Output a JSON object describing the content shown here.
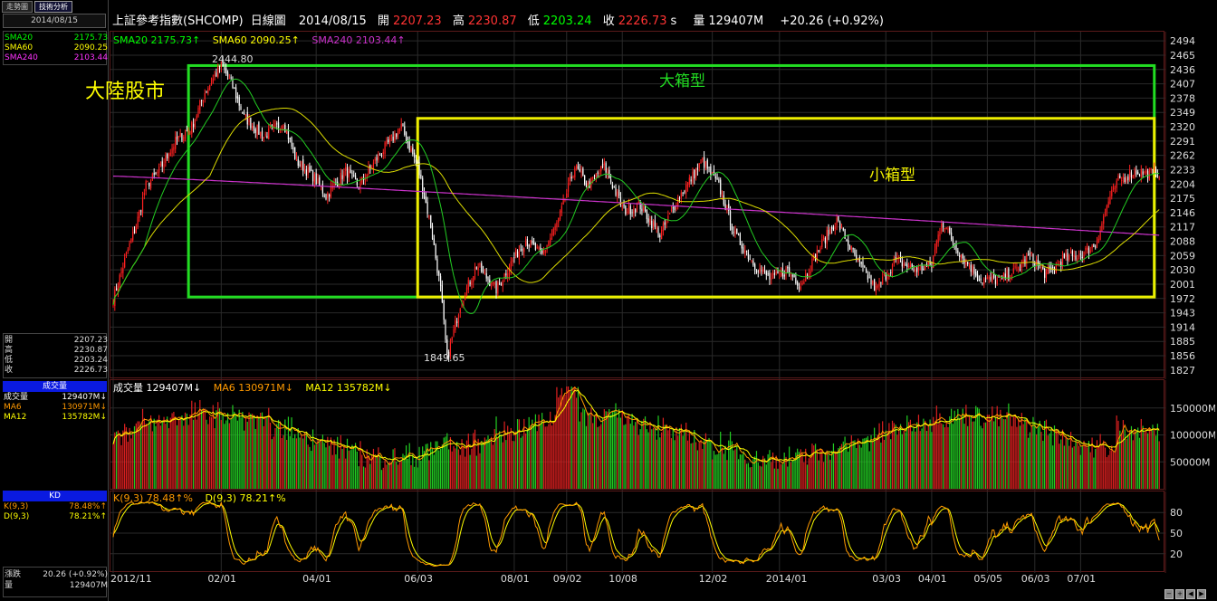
{
  "tabs": [
    {
      "label": "走勢圖"
    },
    {
      "label": "技術分析"
    }
  ],
  "left_panel": {
    "date": "2014/08/15",
    "sma": [
      {
        "label": "SMA20",
        "value": "2175.73",
        "color": "#00ff00"
      },
      {
        "label": "SMA60",
        "value": "2090.25",
        "color": "#ffff00"
      },
      {
        "label": "SMA240",
        "value": "2103.44",
        "color": "#ff33ff"
      }
    ],
    "ohlc": [
      {
        "label": "開",
        "value": "2207.23"
      },
      {
        "label": "高",
        "value": "2230.87"
      },
      {
        "label": "低",
        "value": "2203.24"
      },
      {
        "label": "收",
        "value": "2226.73"
      }
    ],
    "volume_head": "成交量",
    "volume": [
      {
        "label": "成交量",
        "value": "129407M↓",
        "color": "#ffffff"
      },
      {
        "label": "MA6",
        "value": "130971M↓",
        "color": "#ff9900"
      },
      {
        "label": "MA12",
        "value": "135782M↓",
        "color": "#ffff00"
      }
    ],
    "kd_head": "KD",
    "kd": [
      {
        "label": "K(9,3)",
        "value": "78.48%↑",
        "color": "#ff9900"
      },
      {
        "label": "D(9,3)",
        "value": "78.21%↑",
        "color": "#ffff00"
      }
    ],
    "change": {
      "label": "漲跌",
      "value": "20.26 (+0.92%)"
    },
    "vol": {
      "label": "量",
      "value": "129407M"
    }
  },
  "title_bar": {
    "name": "上証參考指數(SHCOMP)",
    "period": "日線圖",
    "date": "2014/08/15",
    "open_label": "開",
    "open": "2207.23",
    "high_label": "高",
    "high": "2230.87",
    "low_label": "低",
    "low": "2203.24",
    "close_label": "收",
    "close": "2226.73",
    "suffix": "s",
    "vol_label": "量",
    "vol": "129407M",
    "change": "+20.26 (+0.92%)"
  },
  "price_legend": [
    {
      "text": "SMA20 2175.73↑",
      "color": "#00ff00"
    },
    {
      "text": "SMA60 2090.25↑",
      "color": "#ffff00"
    },
    {
      "text": "SMA240 2103.44↑",
      "color": "#cc33cc"
    }
  ],
  "volume_legend": [
    {
      "text": "成交量 129407M↓",
      "color": "#ffffff"
    },
    {
      "text": "MA6 130971M↓",
      "color": "#ff9900"
    },
    {
      "text": "MA12 135782M↓",
      "color": "#ffff00"
    }
  ],
  "kd_legend": [
    {
      "text": "K(9,3) 78.48↑%",
      "color": "#ff9900"
    },
    {
      "text": "D(9,3) 78.21↑%",
      "color": "#ffff00"
    }
  ],
  "annotations": {
    "market": "大陸股市",
    "big_box": "大箱型",
    "small_box": "小箱型",
    "high_mark": "2444.80",
    "low_mark": "1849.65"
  },
  "chart_data": [
    {
      "type": "candlestick",
      "title": "上証參考指數(SHCOMP) 日線圖",
      "y_ticks": [
        2494,
        2465,
        2436,
        2407,
        2378,
        2349,
        2320,
        2291,
        2262,
        2233,
        2204,
        2175,
        2146,
        2117,
        2088,
        2059,
        2030,
        2001,
        1972,
        1943,
        1914,
        1885,
        1856,
        1827
      ],
      "ylim": [
        1812,
        2509
      ],
      "x_labels": [
        "2012/11",
        "02/01",
        "04/01",
        "06/03",
        "08/01",
        "09/02",
        "10/08",
        "12/02",
        "2014/01",
        "03/03",
        "04/01",
        "05/05",
        "06/03",
        "07/01"
      ],
      "x_label_days": [
        0,
        66,
        124,
        186,
        245,
        277,
        311,
        366,
        407,
        472,
        500,
        534,
        563,
        591
      ],
      "anchors": [
        {
          "d": 0,
          "v": 1970
        },
        {
          "d": 8,
          "v": 2060
        },
        {
          "d": 14,
          "v": 2120
        },
        {
          "d": 20,
          "v": 2200
        },
        {
          "d": 28,
          "v": 2230
        },
        {
          "d": 38,
          "v": 2290
        },
        {
          "d": 48,
          "v": 2320
        },
        {
          "d": 56,
          "v": 2390
        },
        {
          "d": 66,
          "v": 2444.8
        },
        {
          "d": 72,
          "v": 2410
        },
        {
          "d": 80,
          "v": 2340
        },
        {
          "d": 92,
          "v": 2300
        },
        {
          "d": 104,
          "v": 2330
        },
        {
          "d": 112,
          "v": 2250
        },
        {
          "d": 122,
          "v": 2220
        },
        {
          "d": 130,
          "v": 2180
        },
        {
          "d": 142,
          "v": 2230
        },
        {
          "d": 150,
          "v": 2200
        },
        {
          "d": 162,
          "v": 2260
        },
        {
          "d": 176,
          "v": 2320
        },
        {
          "d": 186,
          "v": 2240
        },
        {
          "d": 194,
          "v": 2120
        },
        {
          "d": 200,
          "v": 1990
        },
        {
          "d": 204,
          "v": 1849.65
        },
        {
          "d": 212,
          "v": 1960
        },
        {
          "d": 222,
          "v": 2040
        },
        {
          "d": 234,
          "v": 1990
        },
        {
          "d": 244,
          "v": 2050
        },
        {
          "d": 252,
          "v": 2090
        },
        {
          "d": 262,
          "v": 2060
        },
        {
          "d": 272,
          "v": 2130
        },
        {
          "d": 282,
          "v": 2240
        },
        {
          "d": 290,
          "v": 2200
        },
        {
          "d": 300,
          "v": 2240
        },
        {
          "d": 312,
          "v": 2150
        },
        {
          "d": 322,
          "v": 2160
        },
        {
          "d": 334,
          "v": 2100
        },
        {
          "d": 346,
          "v": 2180
        },
        {
          "d": 360,
          "v": 2250
        },
        {
          "d": 370,
          "v": 2200
        },
        {
          "d": 380,
          "v": 2100
        },
        {
          "d": 392,
          "v": 2040
        },
        {
          "d": 402,
          "v": 2010
        },
        {
          "d": 412,
          "v": 2030
        },
        {
          "d": 420,
          "v": 2000
        },
        {
          "d": 434,
          "v": 2090
        },
        {
          "d": 442,
          "v": 2130
        },
        {
          "d": 454,
          "v": 2050
        },
        {
          "d": 466,
          "v": 1990
        },
        {
          "d": 478,
          "v": 2050
        },
        {
          "d": 490,
          "v": 2030
        },
        {
          "d": 500,
          "v": 2040
        },
        {
          "d": 506,
          "v": 2130
        },
        {
          "d": 518,
          "v": 2060
        },
        {
          "d": 530,
          "v": 2010
        },
        {
          "d": 542,
          "v": 2010
        },
        {
          "d": 552,
          "v": 2030
        },
        {
          "d": 560,
          "v": 2060
        },
        {
          "d": 570,
          "v": 2020
        },
        {
          "d": 580,
          "v": 2050
        },
        {
          "d": 590,
          "v": 2060
        },
        {
          "d": 600,
          "v": 2080
        },
        {
          "d": 608,
          "v": 2170
        },
        {
          "d": 614,
          "v": 2210
        },
        {
          "d": 624,
          "v": 2230
        },
        {
          "d": 630,
          "v": 2226.73
        }
      ],
      "sma_last": {
        "SMA20": 2175.73,
        "SMA60": 2090.25,
        "SMA240": 2103.44
      },
      "boxes": [
        {
          "label": "大箱型",
          "color": "#22dd22",
          "d0": 46,
          "d1": 636,
          "v0": 1975,
          "v1": 2444
        },
        {
          "label": "小箱型",
          "color": "#eeee00",
          "d0": 186,
          "d1": 636,
          "v0": 1975,
          "v1": 2337
        }
      ]
    },
    {
      "type": "bar",
      "title": "成交量",
      "y_ticks": [
        "150000M",
        "100000M",
        "50000M"
      ],
      "y_tick_values": [
        150000,
        100000,
        50000
      ],
      "ylim": [
        0,
        195000
      ],
      "last": {
        "vol": 129407,
        "MA6": 130971,
        "MA12": 135782
      }
    },
    {
      "type": "line",
      "title": "KD",
      "y_ticks": [
        80,
        50,
        20
      ],
      "ylim": [
        0,
        100
      ],
      "last": {
        "K": 78.48,
        "D": 78.21
      }
    }
  ]
}
